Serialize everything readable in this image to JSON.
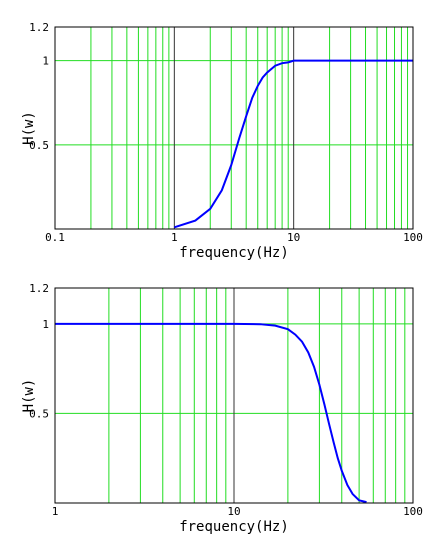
{
  "chart_data": [
    {
      "type": "line",
      "title": "",
      "xlabel": "frequency(Hz)",
      "ylabel": "H(w)",
      "x_scale": "log",
      "xlim": [
        0.1,
        100
      ],
      "ylim": [
        0,
        1.2
      ],
      "grid": true,
      "x_ticks": [
        {
          "value": 0.1,
          "label": "0.1"
        },
        {
          "value": 1,
          "label": "1"
        },
        {
          "value": 10,
          "label": "10"
        },
        {
          "value": 100,
          "label": "100"
        }
      ],
      "y_ticks": [
        {
          "value": 0.5,
          "label": "0.5"
        },
        {
          "value": 1,
          "label": "1"
        },
        {
          "value": 1.2,
          "label": "1.2"
        }
      ],
      "series": [
        {
          "color": "#0000ff",
          "x": [
            1.0,
            1.5,
            2.0,
            2.5,
            3.0,
            3.5,
            4.0,
            4.5,
            5.0,
            5.5,
            6.0,
            7.0,
            8.0,
            9.0,
            10.0,
            15.0,
            20.0,
            30.0,
            50.0,
            100.0
          ],
          "y": [
            0.01,
            0.05,
            0.12,
            0.23,
            0.38,
            0.54,
            0.67,
            0.78,
            0.85,
            0.9,
            0.93,
            0.97,
            0.985,
            0.99,
            1.0,
            1.0,
            1.0,
            1.0,
            1.0,
            1.0
          ]
        }
      ]
    },
    {
      "type": "line",
      "title": "",
      "xlabel": "frequency(Hz)",
      "ylabel": "H(w)",
      "x_scale": "log",
      "xlim": [
        1,
        100
      ],
      "ylim": [
        0,
        1.2
      ],
      "grid": true,
      "x_ticks": [
        {
          "value": 1,
          "label": "1"
        },
        {
          "value": 10,
          "label": "10"
        },
        {
          "value": 100,
          "label": "100"
        }
      ],
      "y_ticks": [
        {
          "value": 0.5,
          "label": "0.5"
        },
        {
          "value": 1,
          "label": "1"
        },
        {
          "value": 1.2,
          "label": "1.2"
        }
      ],
      "series": [
        {
          "color": "#0000ff",
          "x": [
            1.0,
            5.0,
            10.0,
            14.0,
            17.0,
            20.0,
            22.0,
            24.0,
            26.0,
            28.0,
            30.0,
            32.0,
            34.0,
            36.0,
            38.0,
            40.0,
            43.0,
            46.0,
            50.0,
            55.0
          ],
          "y": [
            1.0,
            1.0,
            1.0,
            0.998,
            0.99,
            0.97,
            0.94,
            0.9,
            0.84,
            0.76,
            0.66,
            0.55,
            0.44,
            0.34,
            0.25,
            0.18,
            0.1,
            0.05,
            0.015,
            0.005
          ]
        }
      ]
    }
  ]
}
